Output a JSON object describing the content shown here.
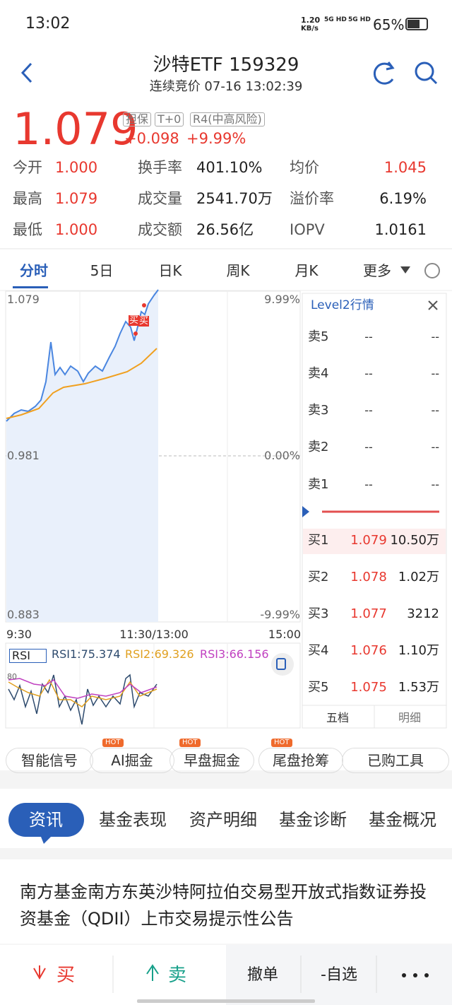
{
  "status_bar": {
    "time": "13:02",
    "speed": "1.20",
    "speed_unit": "KB/s",
    "net1": "5G HD",
    "net2": "5G HD",
    "battery": "65%"
  },
  "header": {
    "title": "沙特ETF 159329",
    "subtitle": "连续竞价 07-16 13:02:39"
  },
  "quote": {
    "price": "1.079",
    "change": "+0.098",
    "change_pct": "+9.99%",
    "tags": [
      "担保",
      "T+0",
      "R4(中高风险)"
    ]
  },
  "stats": [
    [
      "今开",
      "1.000",
      "换手率",
      "401.10%",
      "均价",
      "1.045"
    ],
    [
      "最高",
      "1.079",
      "成交量",
      "2541.70万",
      "溢价率",
      "6.19%"
    ],
    [
      "最低",
      "1.000",
      "成交额",
      "26.56亿",
      "IOPV",
      "1.0161"
    ]
  ],
  "tabs": [
    "分时",
    "5日",
    "日K",
    "周K",
    "月K",
    "更多"
  ],
  "chart": {
    "y_left": [
      "1.079",
      "0.981",
      "0.883"
    ],
    "y_right": [
      "9.99%",
      "0.00%",
      "-9.99%"
    ],
    "x_labels": [
      "9:30",
      "11:30/13:00",
      "15:00"
    ],
    "markers": [
      "买",
      "买"
    ]
  },
  "rsi": {
    "label": "RSI",
    "rsi1": "RSI1:75.374",
    "rsi2": "RSI2:69.326",
    "rsi3": "RSI3:66.156",
    "level": "80"
  },
  "level2": {
    "title": "Level2行情",
    "sell": [
      [
        "卖5",
        "--",
        "--"
      ],
      [
        "卖4",
        "--",
        "--"
      ],
      [
        "卖3",
        "--",
        "--"
      ],
      [
        "卖2",
        "--",
        "--"
      ],
      [
        "卖1",
        "--",
        "--"
      ]
    ],
    "buy": [
      [
        "买1",
        "1.079",
        "10.50万"
      ],
      [
        "买2",
        "1.078",
        "1.02万"
      ],
      [
        "买3",
        "1.077",
        "3212"
      ],
      [
        "买4",
        "1.076",
        "1.10万"
      ],
      [
        "买5",
        "1.075",
        "1.53万"
      ]
    ],
    "tabs": [
      "五档",
      "明细"
    ]
  },
  "tools": {
    "items": [
      "智能信号",
      "AI掘金",
      "早盘掘金",
      "尾盘抢筹",
      "已购工具"
    ],
    "badge": "HOT"
  },
  "info_tabs": [
    "资讯",
    "基金表现",
    "资产明细",
    "基金诊断",
    "基金概况"
  ],
  "news": {
    "title": "南方基金南方东英沙特阿拉伯交易型开放式指数证券投资基金（QDII）上市交易提示性公告"
  },
  "bottom": {
    "buy": "买",
    "sell": "卖",
    "cancel": "撤单",
    "watch": "-自选"
  }
}
